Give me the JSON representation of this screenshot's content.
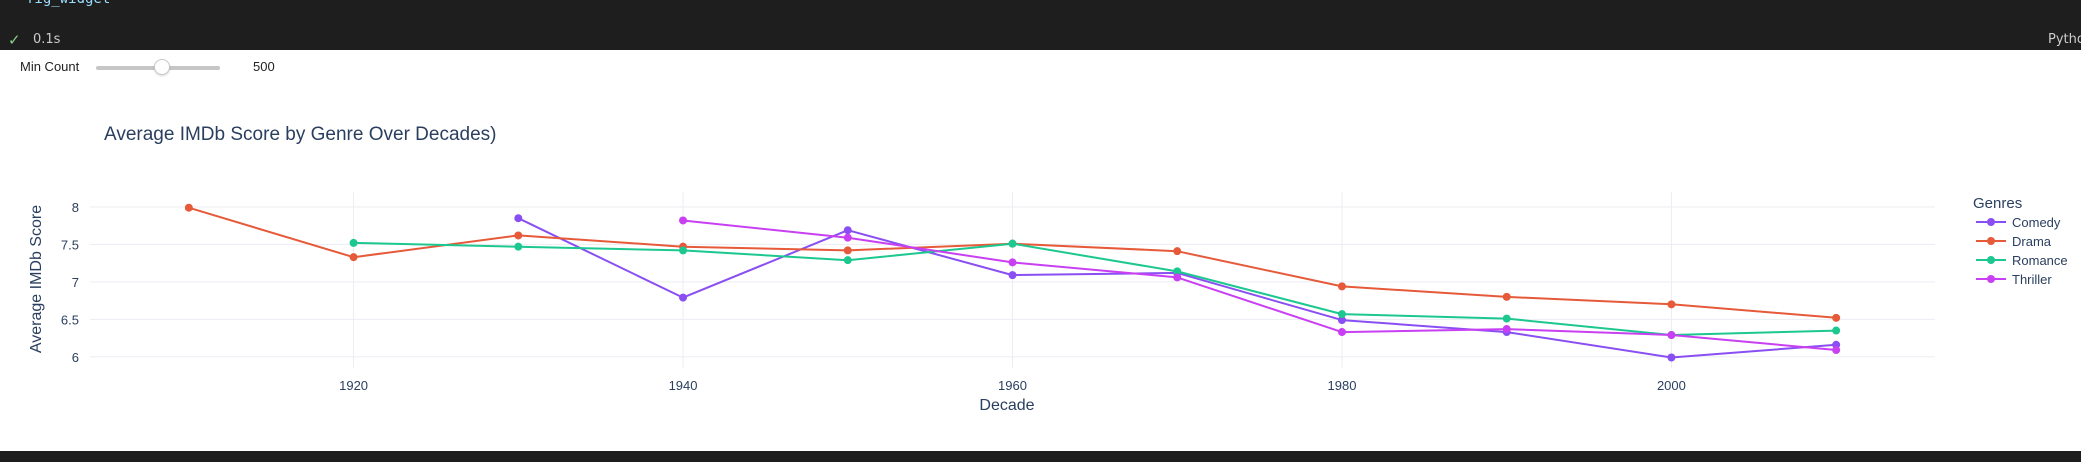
{
  "notebook": {
    "code_line": "fig_widget",
    "exec_check": "✓",
    "exec_time": "0.1s",
    "kernel_label": "Python"
  },
  "widget": {
    "slider_label": "Min Count",
    "slider_value": "500",
    "slider_min": 0,
    "slider_max": 1000,
    "slider_current": 500
  },
  "chart_data": {
    "type": "line",
    "title": "Average IMDb Score by Genre Over Decades)",
    "xlabel": "Decade",
    "ylabel": "Average IMDb Score",
    "xlim": [
      1904,
      2016
    ],
    "ylim": [
      5.85,
      8.2
    ],
    "x_ticks": [
      1920,
      1940,
      1960,
      1980,
      2000
    ],
    "y_ticks": [
      6,
      6.5,
      7,
      7.5,
      8
    ],
    "grid": true,
    "legend_title": "Genres",
    "legend_position": "right",
    "series": [
      {
        "name": "Comedy",
        "color": "#8a4ff2",
        "x": [
          1930,
          1940,
          1950,
          1960,
          1970,
          1980,
          1990,
          2000,
          2010
        ],
        "y": [
          7.85,
          6.79,
          7.69,
          7.09,
          7.12,
          6.49,
          6.33,
          5.99,
          6.16
        ]
      },
      {
        "name": "Drama",
        "color": "#e65a3a",
        "x": [
          1910,
          1920,
          1930,
          1940,
          1950,
          1960,
          1970,
          1980,
          1990,
          2000,
          2010
        ],
        "y": [
          7.99,
          7.33,
          7.62,
          7.47,
          7.42,
          7.51,
          7.41,
          6.94,
          6.8,
          6.7,
          6.52
        ]
      },
      {
        "name": "Romance",
        "color": "#1cc88f",
        "x": [
          1920,
          1930,
          1940,
          1950,
          1960,
          1970,
          1980,
          1990,
          2000,
          2010
        ],
        "y": [
          7.52,
          7.47,
          7.42,
          7.29,
          7.51,
          7.14,
          6.57,
          6.51,
          6.29,
          6.35
        ]
      },
      {
        "name": "Thriller",
        "color": "#c93ff2",
        "x": [
          1940,
          1950,
          1960,
          1970,
          1980,
          1990,
          2000,
          2010
        ],
        "y": [
          7.82,
          7.59,
          7.26,
          7.06,
          6.33,
          6.37,
          6.29,
          6.09
        ]
      }
    ]
  }
}
